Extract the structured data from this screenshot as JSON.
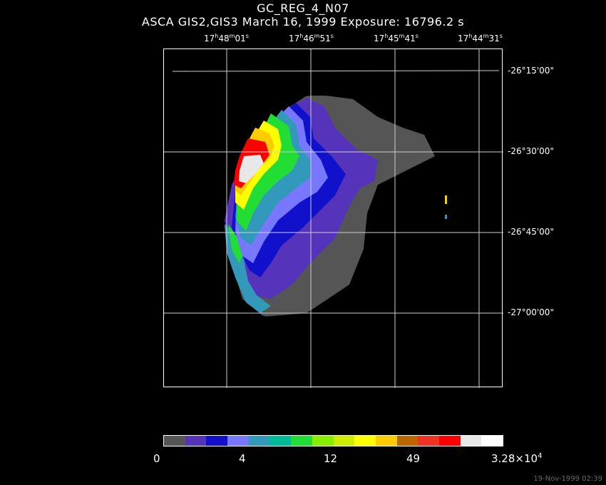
{
  "title": "GC_REG_4_N07",
  "subtitle": "ASCA GIS2,GIS3 March 16, 1999 Exposure: 16796.2 s",
  "ra_labels": [
    {
      "h": "17",
      "m": "48",
      "s": "01"
    },
    {
      "h": "17",
      "m": "46",
      "s": "51"
    },
    {
      "h": "17",
      "m": "45",
      "s": "41"
    },
    {
      "h": "17",
      "m": "44",
      "s": "31"
    }
  ],
  "dec_labels": [
    "-26°15'00\"",
    "-26°30'00\"",
    "-26°45'00\"",
    "-27°00'00\""
  ],
  "colorbar": {
    "colors": [
      "#555555",
      "#5533bb",
      "#1111cc",
      "#7777ff",
      "#3399bb",
      "#00bb99",
      "#22dd33",
      "#88ee00",
      "#ccee00",
      "#ffff00",
      "#ffcc00",
      "#bb6600",
      "#ee3322",
      "#ff0000",
      "#e8e8e8",
      "#ffffff"
    ],
    "tick_0": "0",
    "tick_1": "4",
    "tick_2": "12",
    "tick_3": "49",
    "tick_max_mantissa": "3.28×10",
    "tick_max_exp": "4"
  },
  "timestamp": "19-Nov-1999 02:39"
}
